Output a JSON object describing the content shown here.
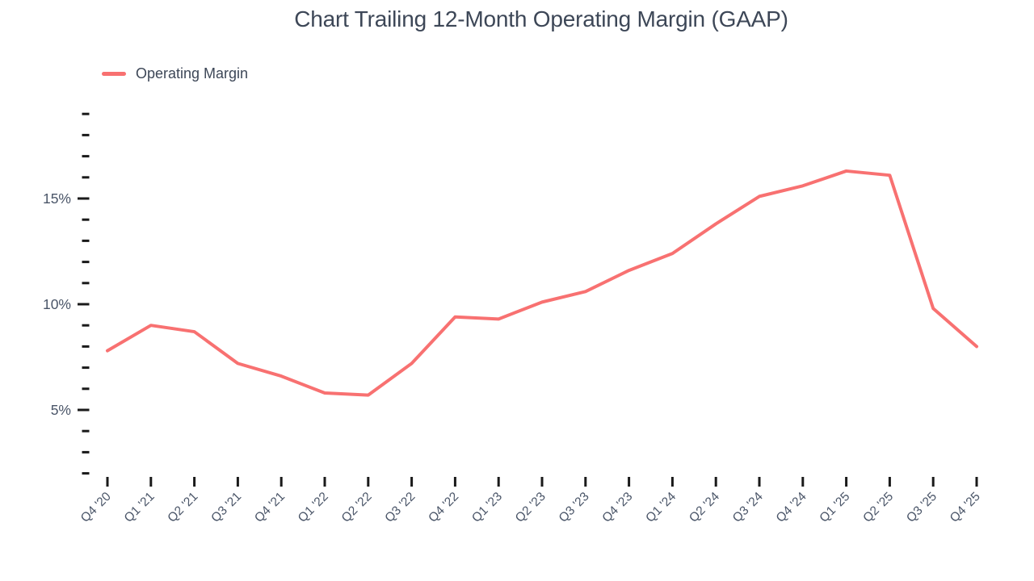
{
  "header": {
    "title": "Chart Trailing 12-Month Operating Margin (GAAP)"
  },
  "legend": {
    "label": "Operating Margin",
    "swatch_color": "#f87171"
  },
  "chart_data": {
    "type": "line",
    "title": "Chart Trailing 12-Month Operating Margin (GAAP)",
    "categories": [
      "Q4 '20",
      "Q1 '21",
      "Q2 '21",
      "Q3 '21",
      "Q4 '21",
      "Q1 '22",
      "Q2 '22",
      "Q3 '22",
      "Q4 '22",
      "Q1 '23",
      "Q2 '23",
      "Q3 '23",
      "Q4 '23",
      "Q1 '24",
      "Q2 '24",
      "Q3 '24",
      "Q4 '24",
      "Q1 '25",
      "Q2 '25",
      "Q3 '25",
      "Q4 '25"
    ],
    "series": [
      {
        "name": "Operating Margin",
        "color": "#f87171",
        "values": [
          7.8,
          9.0,
          8.7,
          7.2,
          6.6,
          5.8,
          5.7,
          7.2,
          9.4,
          9.3,
          10.1,
          10.6,
          11.6,
          12.4,
          13.8,
          15.1,
          15.6,
          16.3,
          16.1,
          9.8,
          8.0
        ]
      }
    ],
    "xlabel": "",
    "ylabel": "",
    "y_axis": {
      "unit": "%",
      "min": 2,
      "max": 19,
      "minor_step": 1,
      "major_ticks": [
        5,
        10,
        15
      ],
      "major_labels": [
        "5%",
        "10%",
        "15%"
      ]
    },
    "ylim": [
      2,
      19
    ],
    "grid": false,
    "legend_position": "top-left",
    "colors": {
      "line": "#f87171",
      "tick": "#1a1a1a",
      "axis_text": "#4a5568",
      "title_text": "#3d4757"
    }
  }
}
